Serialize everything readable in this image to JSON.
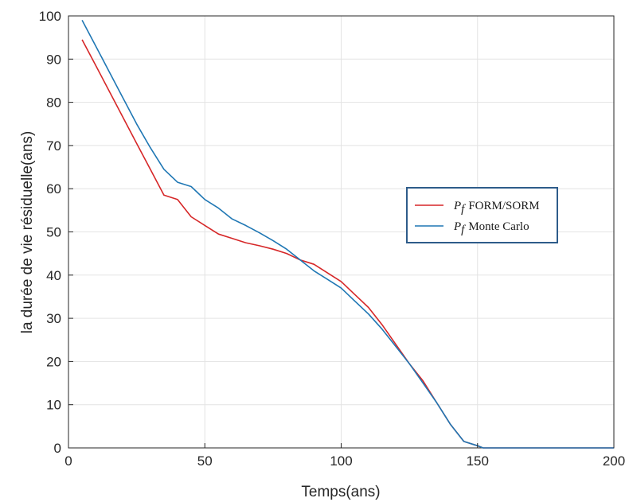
{
  "chart_data": {
    "type": "line",
    "xlabel": "Temps(ans)",
    "ylabel": "la durée de vie résiduelle(ans)",
    "xlim": [
      0,
      200
    ],
    "ylim": [
      0,
      100
    ],
    "xticks": [
      0,
      50,
      100,
      150,
      200
    ],
    "yticks": [
      0,
      10,
      20,
      30,
      40,
      50,
      60,
      70,
      80,
      90,
      100
    ],
    "grid": true,
    "legend_position": "right",
    "series": [
      {
        "name": "FORM/SORM",
        "name_prefix": "P",
        "name_subscript": "f",
        "color": "#d62728",
        "x": [
          5,
          10,
          15,
          20,
          25,
          30,
          35,
          40,
          45,
          50,
          55,
          60,
          65,
          70,
          75,
          80,
          85,
          90,
          95,
          100,
          105,
          110,
          115,
          120,
          125,
          130,
          135,
          140,
          145,
          150,
          152,
          160,
          170,
          180,
          190,
          200
        ],
        "y": [
          94.5,
          88.5,
          82.5,
          76.5,
          70.5,
          64.5,
          58.5,
          57.5,
          53.5,
          51.5,
          49.5,
          48.5,
          47.5,
          46.8,
          46,
          45,
          43.5,
          42.5,
          40.5,
          38.5,
          35.5,
          32.5,
          28.5,
          24,
          19.5,
          15.5,
          10.5,
          5.5,
          1.5,
          0.5,
          0,
          0,
          0,
          0,
          0,
          0
        ]
      },
      {
        "name": "Monte Carlo",
        "name_prefix": "P",
        "name_subscript": "f",
        "color": "#1f77b4",
        "x": [
          5,
          10,
          15,
          20,
          25,
          30,
          35,
          40,
          45,
          50,
          55,
          60,
          65,
          70,
          75,
          80,
          85,
          90,
          95,
          100,
          105,
          110,
          115,
          120,
          125,
          130,
          135,
          140,
          145,
          150,
          152,
          160,
          170,
          180,
          190,
          200
        ],
        "y": [
          99,
          93,
          87,
          81,
          75,
          69.5,
          64.5,
          61.5,
          60.5,
          57.5,
          55.5,
          53,
          51.5,
          49.8,
          48,
          46,
          43.5,
          41,
          39,
          37,
          34,
          31,
          27.5,
          23.5,
          19.5,
          15,
          10.5,
          5.5,
          1.5,
          0.5,
          0,
          0,
          0,
          0,
          0,
          0
        ]
      }
    ]
  }
}
